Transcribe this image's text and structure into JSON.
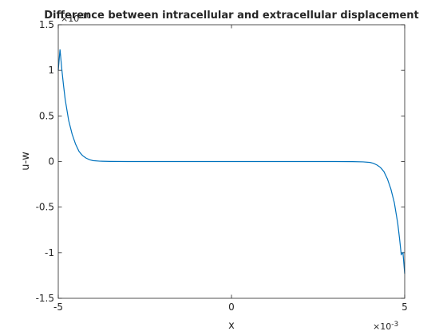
{
  "chart_data": {
    "type": "line",
    "title": "Difference between intracellular and extracellular displacement",
    "xlabel": "x",
    "ylabel": "u-w",
    "xlim": [
      -0.005,
      0.005
    ],
    "ylim": [
      -1.5e-10,
      1.5e-10
    ],
    "x_tick_labels": [
      "-5",
      "0",
      "5"
    ],
    "x_tick_values": [
      -0.005,
      0,
      0.005
    ],
    "x_exponent_label": "×10",
    "x_exponent_power": "-3",
    "y_tick_labels": [
      "1.5",
      "1",
      "0.5",
      "0",
      "-0.5",
      "-1",
      "-1.5"
    ],
    "y_tick_values": [
      1.5e-10,
      1e-10,
      5e-11,
      0,
      -5e-11,
      -1e-10,
      -1.5e-10
    ],
    "y_exponent_label": "×10",
    "y_exponent_power": "-10",
    "grid": false,
    "legend": "none",
    "series": [
      {
        "color": "#0072BD",
        "x": [
          -0.005,
          -0.00495,
          -0.0049,
          -0.00485,
          -0.0048,
          -0.0047,
          -0.0046,
          -0.0045,
          -0.0044,
          -0.0043,
          -0.0042,
          -0.0041,
          -0.004,
          -0.0038,
          -0.0035,
          -0.003,
          -0.002,
          -0.001,
          0,
          0.001,
          0.002,
          0.003,
          0.0035,
          0.0038,
          0.004,
          0.0041,
          0.0042,
          0.0043,
          0.0044,
          0.0045,
          0.0046,
          0.0047,
          0.0048,
          0.00485,
          0.0049,
          0.00495,
          0.005
        ],
        "y": [
          1e-10,
          1.23e-10,
          1.02e-10,
          8.4e-11,
          6.8e-11,
          4.5e-11,
          3e-11,
          1.9e-11,
          1.1e-11,
          6.5e-12,
          3.8e-12,
          2e-12,
          1e-12,
          4e-13,
          1e-13,
          0,
          0,
          0,
          0,
          0,
          0,
          0,
          -1e-13,
          -4e-13,
          -1e-12,
          -2e-12,
          -3.8e-12,
          -6.5e-12,
          -1.1e-11,
          -1.9e-11,
          -3e-11,
          -4.5e-11,
          -6.8e-11,
          -8.4e-11,
          -1.02e-10,
          -1e-10,
          -1.23e-10
        ]
      }
    ]
  }
}
